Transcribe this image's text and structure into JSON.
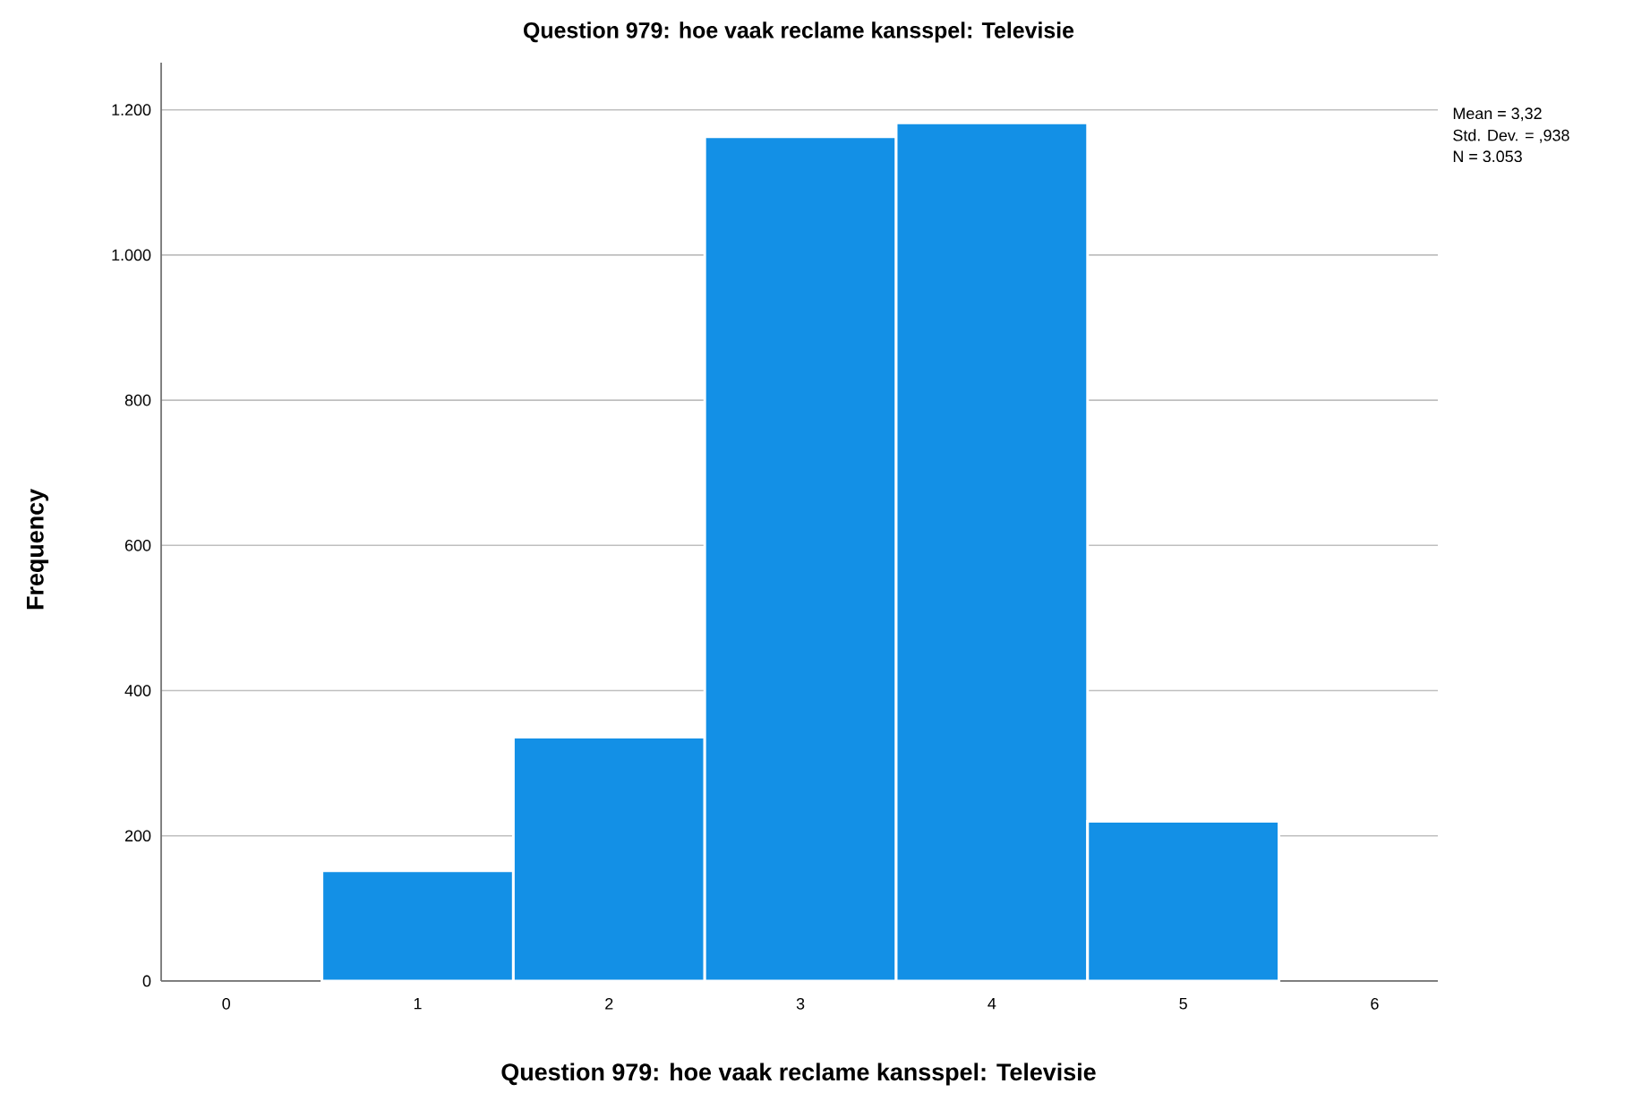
{
  "chart_data": {
    "type": "histogram",
    "title": "Question 979: hoe vaak reclame kansspel: Televisie",
    "xlabel": "Question 979: hoe vaak reclame kansspel: Televisie",
    "ylabel": "Frequency",
    "bins": [
      0.5,
      1.5,
      2.5,
      3.5,
      4.5,
      5.5
    ],
    "values": [
      152,
      336,
      1163,
      1182,
      220
    ],
    "color": "#1390e6",
    "xlim": [
      -0.34,
      6.33
    ],
    "xticks": [
      0,
      1,
      2,
      3,
      4,
      5,
      6
    ],
    "ylim": [
      0,
      1265
    ],
    "yticks": [
      0,
      200,
      400,
      600,
      800,
      {
        "value": 1000,
        "label": "1.000"
      },
      {
        "value": 1200,
        "label": "1.200"
      }
    ],
    "grid": "y",
    "annotations": [
      "Mean = 3,32",
      "Std. Dev. = ,938",
      "N = 3.053"
    ]
  }
}
